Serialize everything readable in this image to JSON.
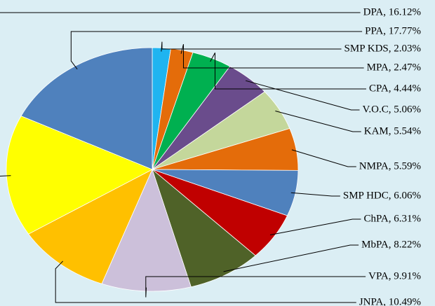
{
  "chart_data": {
    "type": "pie",
    "values": [
      2.03,
      2.47,
      4.44,
      5.06,
      5.54,
      5.59,
      6.06,
      6.31,
      8.22,
      9.91,
      10.49,
      16.12,
      17.77
    ],
    "value_labels": [
      "SMP KDS, 2.03%",
      "MPA, 2.47%",
      "CPA, 4.44%",
      "V.O.C, 5.06%",
      "KAM, 5.54%",
      "NMPA, 5.59%",
      "SMP HDC, 6.06%",
      "ChPA, 6.31%",
      "MbPA, 8.22%",
      "VPA, 9.91%",
      "JNPA, 10.49%",
      "DPA, 16.12%",
      "PPA, 17.77%"
    ],
    "colors": [
      "#1fb4f0",
      "#e46c0a",
      "#00b050",
      "#6a4c8c",
      "#c4d79b",
      "#e46c0a",
      "#4f81bd",
      "#c00000",
      "#4f6228",
      "#ccc0da",
      "#ffc000",
      "#ffff00",
      "#4f81bd"
    ]
  }
}
